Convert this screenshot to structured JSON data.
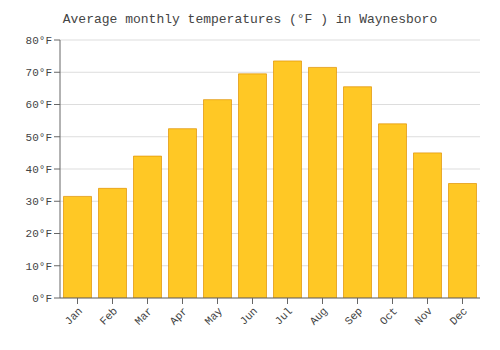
{
  "chart_data": {
    "type": "bar",
    "title": "Average monthly temperatures (°F ) in Waynesboro",
    "categories": [
      "Jan",
      "Feb",
      "Mar",
      "Apr",
      "May",
      "Jun",
      "Jul",
      "Aug",
      "Sep",
      "Oct",
      "Nov",
      "Dec"
    ],
    "values": [
      31.5,
      34.0,
      44.0,
      52.5,
      61.5,
      69.5,
      73.5,
      71.5,
      65.5,
      54.0,
      45.0,
      35.5
    ],
    "color": "#FFC825",
    "ylim": [
      0,
      80
    ],
    "yticks": [
      {
        "value": 0,
        "label": "0°F"
      },
      {
        "value": 10,
        "label": "10°F"
      },
      {
        "value": 20,
        "label": "20°F"
      },
      {
        "value": 30,
        "label": "30°F"
      },
      {
        "value": 40,
        "label": "40°F"
      },
      {
        "value": 50,
        "label": "50°F"
      },
      {
        "value": 60,
        "label": "60°F"
      },
      {
        "value": 70,
        "label": "70°F"
      },
      {
        "value": 80,
        "label": "80°F"
      }
    ],
    "grid": true
  }
}
